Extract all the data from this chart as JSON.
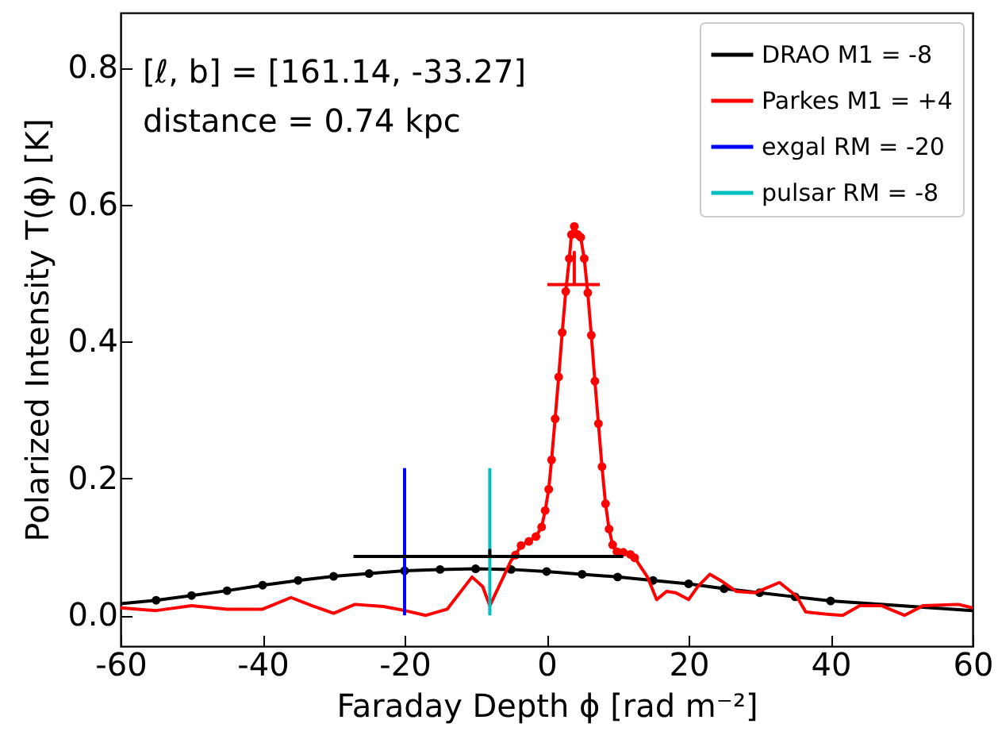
{
  "chart_data": {
    "type": "line",
    "xlabel": "Faraday Depth ϕ [rad m⁻²]",
    "ylabel": "Polarized Intensity T(ϕ) [K]",
    "annotations": [
      "[ℓ, b] = [161.14, -33.27]",
      "distance = 0.74 kpc"
    ],
    "xlim": [
      -60,
      60
    ],
    "xticks": [
      -60,
      -40,
      -20,
      0,
      20,
      40,
      60
    ],
    "ylim": [
      -0.045,
      0.88
    ],
    "yticks": [
      {
        "value": 0,
        "label": "0.0"
      },
      {
        "value": 0.2,
        "label": "0.2"
      },
      {
        "value": 0.4,
        "label": "0.4"
      },
      {
        "value": 0.6,
        "label": "0.6"
      },
      {
        "value": 0.8,
        "label": "0.8"
      }
    ],
    "grid": false,
    "legend": "top right",
    "series": [
      {
        "name": "DRAO M1 = -8",
        "color": "#000000",
        "type": "line",
        "x": [
          -60,
          -55,
          -50,
          -45,
          -40,
          -35,
          -30,
          -25,
          -20,
          -15,
          -10,
          -5,
          0,
          5,
          10,
          15,
          20,
          25,
          30,
          35,
          40,
          60
        ],
        "values": [
          0.017,
          0.022,
          0.029,
          0.036,
          0.044,
          0.051,
          0.057,
          0.061,
          0.065,
          0.067,
          0.068,
          0.067,
          0.064,
          0.06,
          0.056,
          0.051,
          0.046,
          0.039,
          0.033,
          0.027,
          0.021,
          0.007
        ]
      },
      {
        "color": "#000000",
        "type": "scatter",
        "marker": "circle",
        "x": [
          -55,
          -50,
          -45,
          -40,
          -35,
          -30,
          -25,
          -20,
          -15,
          -10,
          -5,
          0,
          5,
          10,
          15,
          20,
          25,
          30,
          35,
          40
        ],
        "values": [
          0.022,
          0.029,
          0.036,
          0.044,
          0.051,
          0.057,
          0.061,
          0.065,
          0.067,
          0.068,
          0.067,
          0.064,
          0.06,
          0.056,
          0.051,
          0.046,
          0.039,
          0.033,
          0.027,
          0.021
        ]
      },
      {
        "name": "Parkes M1 = +4",
        "color": "#ff0000",
        "type": "line",
        "x": [
          -60,
          -55,
          -50,
          -45,
          -40,
          -36,
          -33,
          -30,
          -27,
          -23,
          -20,
          -17,
          -14,
          -10.5,
          -9,
          -8,
          -6.5,
          -5,
          -4.4,
          -3.6,
          -2.5,
          -1.5,
          -0.7,
          -0.2,
          0.3,
          0.7,
          1.2,
          1.7,
          2.2,
          2.7,
          3.2,
          3.5,
          3.9,
          4.4,
          4.8,
          5.3,
          5.8,
          6.3,
          6.8,
          7.3,
          7.8,
          8.3,
          8.8,
          9.3,
          9.9,
          10.8,
          11.8,
          12.4,
          14.2,
          15.5,
          16.9,
          18.2,
          20,
          21.3,
          23,
          24.5,
          26.7,
          29.4,
          32.8,
          35.2,
          36.5,
          39.2,
          41.7,
          44.1,
          47.2,
          50.4,
          53,
          58,
          60
        ],
        "values": [
          0.011,
          0.007,
          0.014,
          0.009,
          0.009,
          0.026,
          0.014,
          0.003,
          0.016,
          0.013,
          0.007,
          0,
          0.009,
          0.056,
          0.042,
          0.014,
          0.047,
          0.08,
          0.088,
          0.102,
          0.108,
          0.115,
          0.129,
          0.153,
          0.184,
          0.227,
          0.287,
          0.348,
          0.413,
          0.473,
          0.521,
          0.556,
          0.568,
          0.556,
          0.552,
          0.521,
          0.471,
          0.409,
          0.342,
          0.28,
          0.217,
          0.163,
          0.126,
          0.103,
          0.093,
          0.092,
          0.089,
          0.084,
          0.056,
          0.023,
          0.035,
          0.033,
          0.023,
          0.042,
          0.06,
          0.051,
          0.035,
          0.033,
          0.048,
          0.028,
          0.005,
          0.002,
          0,
          0.014,
          0.014,
          0,
          0.014,
          0.016,
          0.011
        ]
      },
      {
        "color": "#ff0000",
        "type": "scatter",
        "marker": "circle",
        "x": [
          -4.4,
          -3.6,
          -2.5,
          -1.5,
          -0.7,
          -0.2,
          0.3,
          0.7,
          1.2,
          1.7,
          2.2,
          2.7,
          3.2,
          3.5,
          3.9,
          4.4,
          4.8,
          5.3,
          5.8,
          6.3,
          6.8,
          7.3,
          7.8,
          8.3,
          8.8,
          9.3,
          9.9,
          10.8,
          11.8,
          12.4
        ],
        "values": [
          0.088,
          0.102,
          0.108,
          0.115,
          0.129,
          0.153,
          0.184,
          0.227,
          0.287,
          0.348,
          0.413,
          0.473,
          0.521,
          0.556,
          0.568,
          0.556,
          0.552,
          0.521,
          0.471,
          0.409,
          0.342,
          0.28,
          0.217,
          0.163,
          0.126,
          0.103,
          0.093,
          0.092,
          0.089,
          0.084
        ]
      },
      {
        "color": "#000000",
        "type": "line",
        "x": [
          -27.2,
          -8,
          -8,
          -8,
          10.8
        ],
        "values": [
          0.086,
          0.086,
          0.095,
          0.086,
          0.086
        ]
      },
      {
        "color": "#ff0000",
        "type": "line",
        "x": [
          0.1,
          3.9,
          3.9,
          3.9,
          7.5
        ],
        "values": [
          0.483,
          0.483,
          0.53,
          0.483,
          0.483
        ]
      },
      {
        "name": "exgal RM = -20",
        "color": "#0000ff",
        "type": "line",
        "x": [
          -20,
          -20
        ],
        "values": [
          0,
          0.215
        ]
      },
      {
        "name": "pulsar RM =  -8",
        "color": "#00bfbf",
        "type": "line",
        "x": [
          -8,
          -8
        ],
        "values": [
          0,
          0.215
        ]
      }
    ]
  }
}
